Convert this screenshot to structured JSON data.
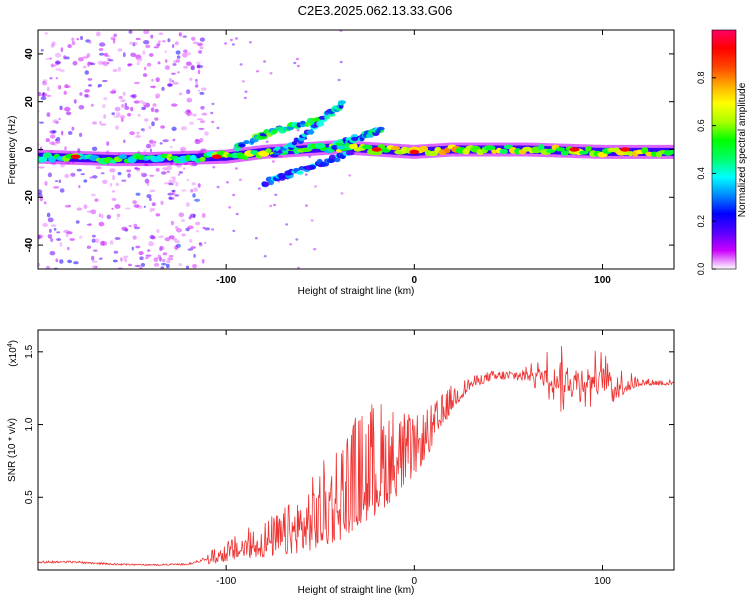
{
  "title": "C2E3.2025.062.13.33.G06",
  "chart_data": [
    {
      "type": "heatmap",
      "xlabel": "Height of straight line (km)",
      "ylabel": "Frequency (Hz)",
      "xlim": [
        -200,
        138
      ],
      "ylim": [
        -50,
        50
      ],
      "xticks": [
        -100,
        0,
        100
      ],
      "yticks": [
        -40,
        -20,
        0,
        20,
        40
      ],
      "colorbar": {
        "label": "Normalized spectral amplitude",
        "range": [
          0,
          1
        ],
        "ticks": [
          0.0,
          0.2,
          0.4,
          0.6,
          0.8
        ],
        "colors": [
          "#ffffff",
          "#cc00ff",
          "#5500ff",
          "#0000ff",
          "#0088ff",
          "#00ffff",
          "#00ff66",
          "#00ff00",
          "#aaff00",
          "#ffff00",
          "#ffaa00",
          "#ff4400",
          "#ff0000",
          "#ff0066"
        ]
      },
      "ridge": [
        {
          "x": -200,
          "f": -3,
          "a": 0.45
        },
        {
          "x": -180,
          "f": -3.5,
          "a": 0.5
        },
        {
          "x": -160,
          "f": -4,
          "a": 0.45
        },
        {
          "x": -140,
          "f": -4,
          "a": 0.45
        },
        {
          "x": -120,
          "f": -3.5,
          "a": 0.5
        },
        {
          "x": -100,
          "f": -3,
          "a": 0.55
        },
        {
          "x": -80,
          "f": -1,
          "a": 0.55
        },
        {
          "x": -60,
          "f": 0,
          "a": 0.55
        },
        {
          "x": -40,
          "f": 1,
          "a": 0.6
        },
        {
          "x": -20,
          "f": 0,
          "a": 0.65
        },
        {
          "x": 0,
          "f": -1,
          "a": 0.7
        },
        {
          "x": 20,
          "f": 0,
          "a": 0.65
        },
        {
          "x": 40,
          "f": 0,
          "a": 0.6
        },
        {
          "x": 60,
          "f": 0,
          "a": 0.6
        },
        {
          "x": 80,
          "f": -0.5,
          "a": 0.6
        },
        {
          "x": 100,
          "f": -1,
          "a": 0.6
        },
        {
          "x": 120,
          "f": -1,
          "a": 0.65
        },
        {
          "x": 138,
          "f": -1,
          "a": 0.6
        }
      ],
      "branches": [
        {
          "x": [
            -95,
            -80,
            -65,
            -50
          ],
          "f": [
            1,
            6,
            10,
            12
          ],
          "a": 0.4
        },
        {
          "x": [
            -75,
            -60,
            -45,
            -38
          ],
          "f": [
            -2,
            4,
            15,
            20
          ],
          "a": 0.3
        },
        {
          "x": [
            -80,
            -65,
            -50,
            -35
          ],
          "f": [
            -14,
            -10,
            -6,
            -2
          ],
          "a": 0.3
        },
        {
          "x": [
            -45,
            -35,
            -25,
            -18
          ],
          "f": [
            0,
            4,
            6,
            8
          ],
          "a": 0.35
        }
      ],
      "hot_spots": [
        {
          "x": -180,
          "f": -3
        },
        {
          "x": -105,
          "f": -3
        },
        {
          "x": -20,
          "f": 0
        },
        {
          "x": 0,
          "f": -1
        },
        {
          "x": 85,
          "f": 0
        },
        {
          "x": 112,
          "f": 0
        }
      ],
      "noise_region": {
        "x": [
          -200,
          -110
        ],
        "f": [
          -50,
          50
        ]
      }
    },
    {
      "type": "line",
      "xlabel": "Height of straight line (km)",
      "ylabel": "SNR (10 * v/v)",
      "scale_note": "(x10",
      "scale_exp": "4",
      "xlim": [
        -200,
        138
      ],
      "ylim": [
        0,
        1.65
      ],
      "xticks": [
        -100,
        0,
        100
      ],
      "yticks": [
        0.5,
        1.0,
        1.5
      ],
      "color": "#ee3333",
      "envelope": [
        {
          "x": -200,
          "lo": 0.03,
          "hi": 0.08
        },
        {
          "x": -180,
          "lo": 0.03,
          "hi": 0.08
        },
        {
          "x": -160,
          "lo": 0.02,
          "hi": 0.06
        },
        {
          "x": -140,
          "lo": 0.02,
          "hi": 0.05
        },
        {
          "x": -120,
          "lo": 0.02,
          "hi": 0.06
        },
        {
          "x": -110,
          "lo": 0.04,
          "hi": 0.12
        },
        {
          "x": -100,
          "lo": 0.06,
          "hi": 0.2
        },
        {
          "x": -90,
          "lo": 0.08,
          "hi": 0.28
        },
        {
          "x": -80,
          "lo": 0.09,
          "hi": 0.35
        },
        {
          "x": -70,
          "lo": 0.1,
          "hi": 0.42
        },
        {
          "x": -60,
          "lo": 0.12,
          "hi": 0.55
        },
        {
          "x": -50,
          "lo": 0.15,
          "hi": 0.72
        },
        {
          "x": -40,
          "lo": 0.2,
          "hi": 0.95
        },
        {
          "x": -30,
          "lo": 0.3,
          "hi": 1.1
        },
        {
          "x": -20,
          "lo": 0.38,
          "hi": 1.2
        },
        {
          "x": -10,
          "lo": 0.5,
          "hi": 1.15
        },
        {
          "x": 0,
          "lo": 0.65,
          "hi": 1.05
        },
        {
          "x": 10,
          "lo": 0.85,
          "hi": 1.15
        },
        {
          "x": 20,
          "lo": 1.1,
          "hi": 1.28
        },
        {
          "x": 30,
          "lo": 1.25,
          "hi": 1.33
        },
        {
          "x": 40,
          "lo": 1.3,
          "hi": 1.37
        },
        {
          "x": 50,
          "lo": 1.31,
          "hi": 1.38
        },
        {
          "x": 60,
          "lo": 1.3,
          "hi": 1.4
        },
        {
          "x": 70,
          "lo": 1.15,
          "hi": 1.52
        },
        {
          "x": 80,
          "lo": 1.05,
          "hi": 1.55
        },
        {
          "x": 90,
          "lo": 1.05,
          "hi": 1.58
        },
        {
          "x": 100,
          "lo": 1.08,
          "hi": 1.52
        },
        {
          "x": 110,
          "lo": 1.2,
          "hi": 1.4
        },
        {
          "x": 120,
          "lo": 1.27,
          "hi": 1.32
        },
        {
          "x": 138,
          "lo": 1.27,
          "hi": 1.31
        }
      ]
    }
  ]
}
